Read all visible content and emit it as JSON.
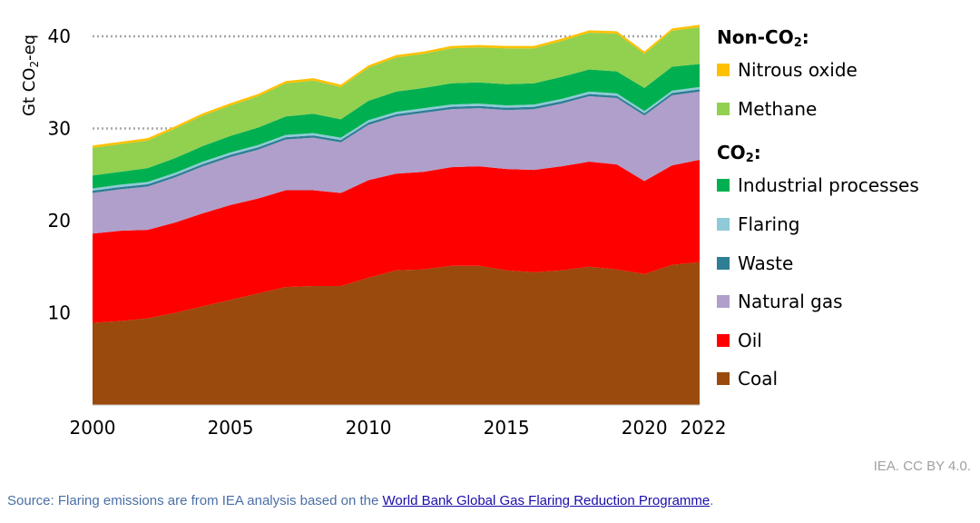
{
  "chart_data": {
    "type": "area",
    "stacked": true,
    "x": [
      2000,
      2001,
      2002,
      2003,
      2004,
      2005,
      2006,
      2007,
      2008,
      2009,
      2010,
      2011,
      2012,
      2013,
      2014,
      2015,
      2016,
      2017,
      2018,
      2019,
      2020,
      2021,
      2022
    ],
    "xticks": [
      "2000",
      "2005",
      "2010",
      "2015",
      "2020",
      "2022"
    ],
    "yticks": [
      "10",
      "20",
      "30",
      "40"
    ],
    "ylabel_text": "Gt CO",
    "ylabel_sub": "2",
    "ylabel_suffix": "-eq",
    "ylim": [
      0,
      42
    ],
    "dotted_gridlines": [
      30,
      40
    ],
    "series": [
      {
        "name": "Coal",
        "color": "#9a4a0c",
        "values": [
          8.9,
          9.1,
          9.4,
          10.0,
          10.7,
          11.4,
          12.1,
          12.8,
          12.9,
          12.9,
          13.8,
          14.6,
          14.7,
          15.1,
          15.1,
          14.6,
          14.4,
          14.6,
          15.0,
          14.7,
          14.2,
          15.2,
          15.5
        ]
      },
      {
        "name": "Oil",
        "color": "#ff0000",
        "values": [
          9.7,
          9.8,
          9.6,
          9.8,
          10.1,
          10.3,
          10.3,
          10.5,
          10.4,
          10.1,
          10.6,
          10.5,
          10.6,
          10.7,
          10.8,
          11.0,
          11.1,
          11.3,
          11.4,
          11.4,
          10.1,
          10.8,
          11.1
        ]
      },
      {
        "name": "Natural gas",
        "color": "#b09fca",
        "values": [
          4.4,
          4.5,
          4.7,
          4.9,
          5.1,
          5.2,
          5.3,
          5.5,
          5.7,
          5.5,
          6.0,
          6.2,
          6.4,
          6.3,
          6.3,
          6.4,
          6.6,
          6.8,
          7.1,
          7.2,
          7.1,
          7.6,
          7.4
        ]
      },
      {
        "name": "Waste",
        "color": "#2e7e95",
        "values": [
          0.25,
          0.25,
          0.25,
          0.25,
          0.25,
          0.25,
          0.25,
          0.25,
          0.25,
          0.25,
          0.25,
          0.25,
          0.25,
          0.25,
          0.25,
          0.25,
          0.25,
          0.25,
          0.25,
          0.25,
          0.25,
          0.25,
          0.25
        ]
      },
      {
        "name": "Flaring",
        "color": "#8fcad8",
        "values": [
          0.25,
          0.25,
          0.25,
          0.25,
          0.25,
          0.25,
          0.25,
          0.25,
          0.25,
          0.25,
          0.25,
          0.25,
          0.25,
          0.25,
          0.25,
          0.25,
          0.25,
          0.25,
          0.25,
          0.25,
          0.25,
          0.25,
          0.25
        ]
      },
      {
        "name": "Industrial processes",
        "color": "#00b050",
        "values": [
          1.4,
          1.4,
          1.5,
          1.6,
          1.7,
          1.8,
          1.9,
          2.0,
          2.1,
          2.0,
          2.1,
          2.2,
          2.2,
          2.3,
          2.3,
          2.3,
          2.3,
          2.4,
          2.4,
          2.4,
          2.5,
          2.6,
          2.5
        ]
      },
      {
        "name": "Methane",
        "color": "#92d050",
        "values": [
          3.0,
          3.0,
          3.0,
          3.2,
          3.3,
          3.3,
          3.4,
          3.6,
          3.6,
          3.5,
          3.6,
          3.7,
          3.7,
          3.8,
          3.8,
          3.9,
          3.8,
          3.9,
          4.0,
          4.1,
          3.7,
          3.9,
          4.0
        ]
      },
      {
        "name": "Nitrous oxide",
        "color": "#ffc000",
        "values": [
          0.25,
          0.25,
          0.25,
          0.25,
          0.25,
          0.25,
          0.25,
          0.25,
          0.25,
          0.25,
          0.25,
          0.25,
          0.25,
          0.25,
          0.25,
          0.25,
          0.25,
          0.25,
          0.25,
          0.25,
          0.25,
          0.25,
          0.25
        ]
      }
    ]
  },
  "legend": {
    "non_co2_heading_text": "Non-CO",
    "non_co2_heading_sub": "2",
    "non_co2_heading_suffix": ":",
    "co2_heading_text": "CO",
    "co2_heading_sub": "2",
    "co2_heading_suffix": ":",
    "items": [
      {
        "label": "Nitrous oxide",
        "color": "#ffc000"
      },
      {
        "label": "Methane",
        "color": "#92d050"
      },
      {
        "label": "Industrial processes",
        "color": "#00b050"
      },
      {
        "label": "Flaring",
        "color": "#8fcad8"
      },
      {
        "label": "Waste",
        "color": "#2e7e95"
      },
      {
        "label": "Natural gas",
        "color": "#b09fca"
      },
      {
        "label": "Oil",
        "color": "#ff0000"
      },
      {
        "label": "Coal",
        "color": "#9a4a0c"
      }
    ]
  },
  "footer": {
    "credit": "IEA. CC BY 4.0.",
    "source_prefix": "Source: Flaring emissions are from IEA analysis based on the ",
    "source_link": "World Bank Global Gas Flaring Reduction Programme",
    "source_suffix": "."
  }
}
